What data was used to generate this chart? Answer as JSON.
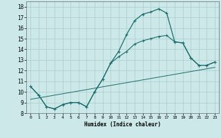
{
  "title": "",
  "xlabel": "Humidex (Indice chaleur)",
  "background_color": "#cce8e8",
  "grid_color": "#aacccc",
  "line_color": "#1a6b6b",
  "xlim": [
    -0.5,
    23.5
  ],
  "ylim": [
    8,
    18.5
  ],
  "xticks": [
    0,
    1,
    2,
    3,
    4,
    5,
    6,
    7,
    8,
    9,
    10,
    11,
    12,
    13,
    14,
    15,
    16,
    17,
    18,
    19,
    20,
    21,
    22,
    23
  ],
  "yticks": [
    8,
    9,
    10,
    11,
    12,
    13,
    14,
    15,
    16,
    17,
    18
  ],
  "line1_x": [
    0,
    1,
    2,
    3,
    4,
    5,
    6,
    7,
    8,
    9,
    10,
    11,
    12,
    13,
    14,
    15,
    16,
    17,
    18,
    19,
    20,
    21,
    22,
    23
  ],
  "line1_y": [
    10.5,
    9.7,
    8.6,
    8.4,
    8.8,
    9.0,
    9.0,
    8.6,
    10.0,
    11.2,
    12.7,
    13.8,
    15.4,
    16.7,
    17.3,
    17.5,
    17.8,
    17.4,
    14.7,
    14.6,
    13.2,
    12.5,
    12.5,
    12.8
  ],
  "line2_x": [
    0,
    1,
    2,
    3,
    4,
    5,
    6,
    7,
    8,
    9,
    10,
    11,
    12,
    13,
    14,
    15,
    16,
    17,
    18,
    19,
    20,
    21,
    22,
    23
  ],
  "line2_y": [
    10.5,
    9.7,
    8.6,
    8.4,
    8.8,
    9.0,
    9.0,
    8.6,
    10.0,
    11.2,
    12.7,
    13.3,
    13.8,
    14.5,
    14.8,
    15.0,
    15.2,
    15.3,
    14.7,
    14.6,
    13.2,
    12.5,
    12.5,
    12.8
  ],
  "line3_x": [
    0,
    23
  ],
  "line3_y": [
    9.3,
    12.3
  ]
}
